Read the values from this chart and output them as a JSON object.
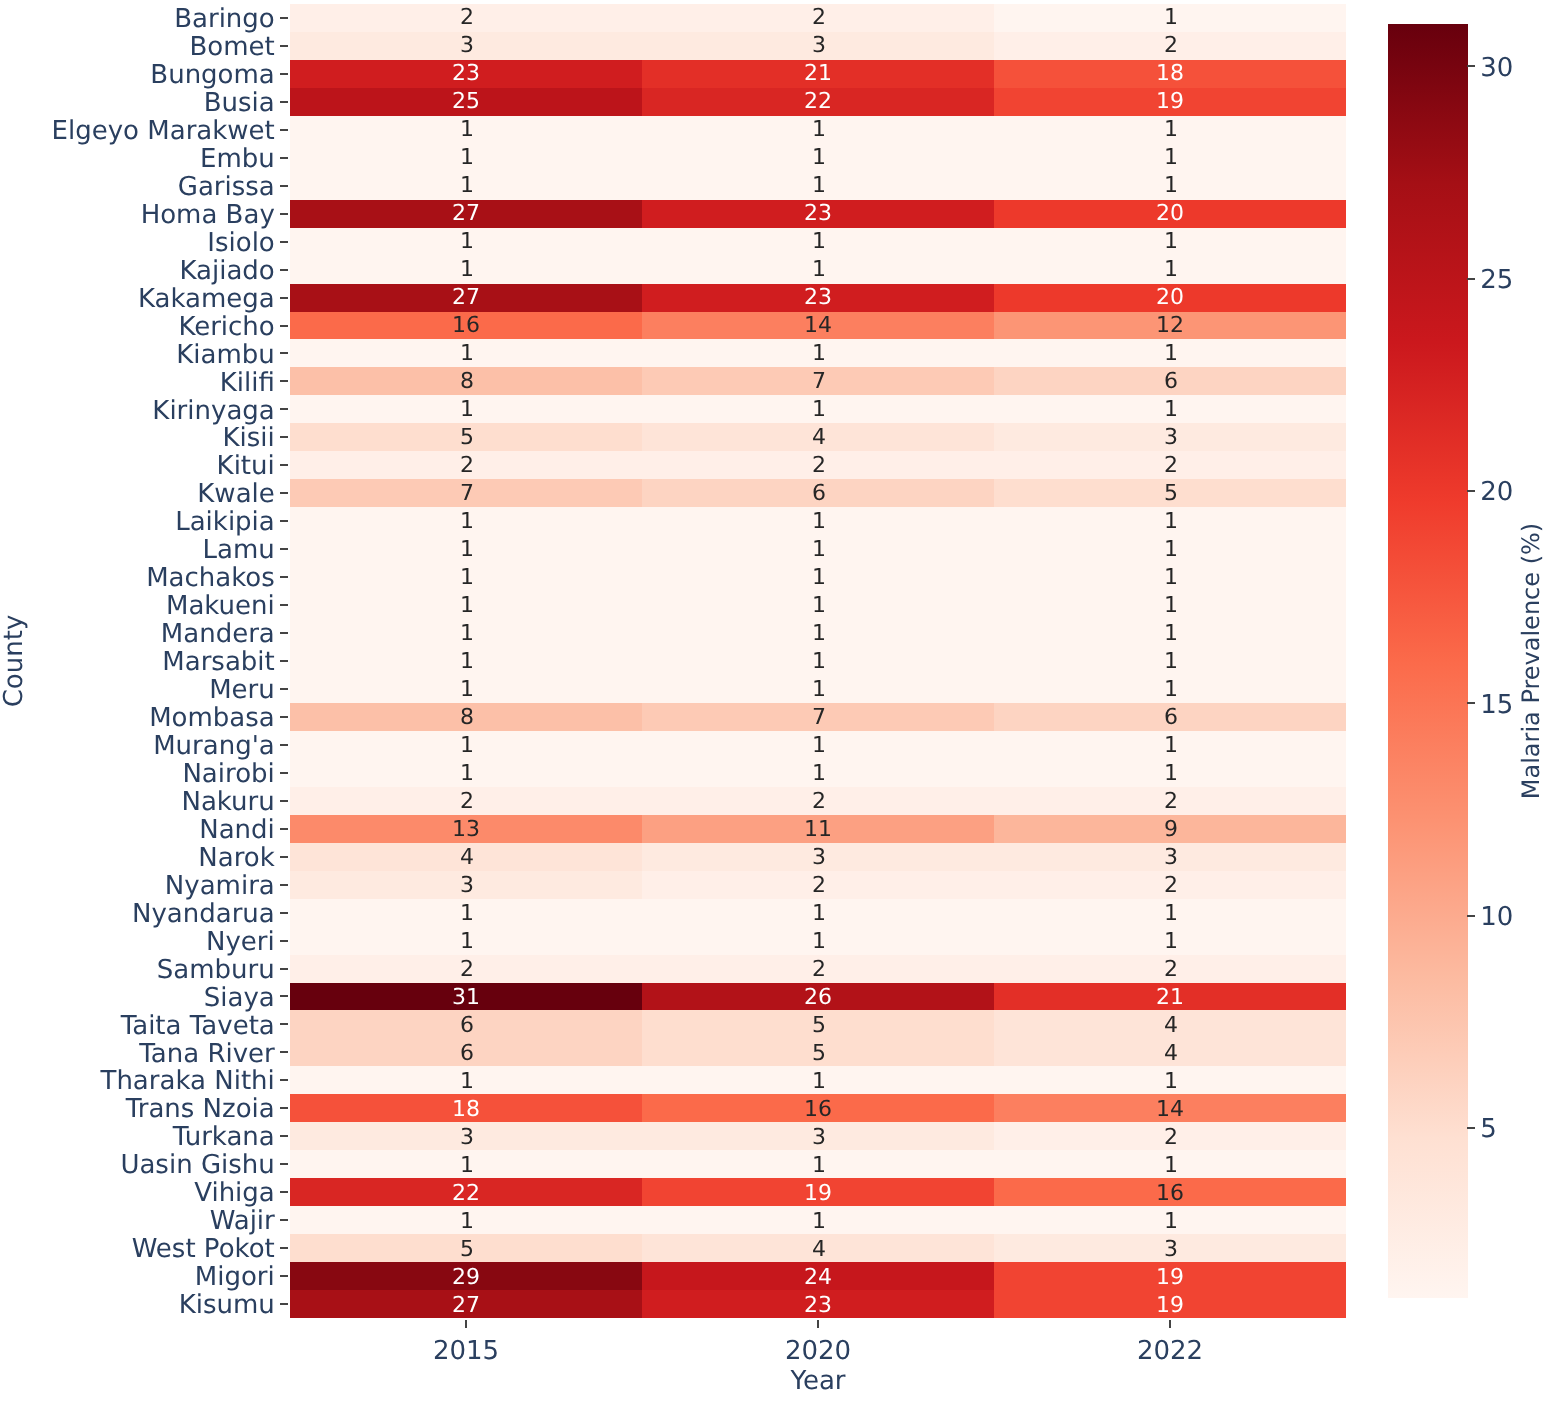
{
  "chart_data": {
    "type": "heatmap",
    "xlabel": "Year",
    "ylabel": "County",
    "clabel": "Malaria Prevalence (%)",
    "categories": [
      "2015",
      "2020",
      "2022"
    ],
    "y_categories": [
      "Baringo",
      "Bomet",
      "Bungoma",
      "Busia",
      "Elgeyo Marakwet",
      "Embu",
      "Garissa",
      "Homa Bay",
      "Isiolo",
      "Kajiado",
      "Kakamega",
      "Kericho",
      "Kiambu",
      "Kilifi",
      "Kirinyaga",
      "Kisii",
      "Kitui",
      "Kwale",
      "Laikipia",
      "Lamu",
      "Machakos",
      "Makueni",
      "Mandera",
      "Marsabit",
      "Meru",
      "Mombasa",
      "Murang'a",
      "Nairobi",
      "Nakuru",
      "Nandi",
      "Narok",
      "Nyamira",
      "Nyandarua",
      "Nyeri",
      "Samburu",
      "Siaya",
      "Taita Taveta",
      "Tana River",
      "Tharaka Nithi",
      "Trans Nzoia",
      "Turkana",
      "Uasin Gishu",
      "Vihiga",
      "Wajir",
      "West Pokot",
      "Migori",
      "Kisumu"
    ],
    "cells": [
      [
        2,
        2,
        1
      ],
      [
        3,
        3,
        2
      ],
      [
        23,
        21,
        18
      ],
      [
        25,
        22,
        19
      ],
      [
        1,
        1,
        1
      ],
      [
        1,
        1,
        1
      ],
      [
        1,
        1,
        1
      ],
      [
        27,
        23,
        20
      ],
      [
        1,
        1,
        1
      ],
      [
        1,
        1,
        1
      ],
      [
        27,
        23,
        20
      ],
      [
        16,
        14,
        12
      ],
      [
        1,
        1,
        1
      ],
      [
        8,
        7,
        6
      ],
      [
        1,
        1,
        1
      ],
      [
        5,
        4,
        3
      ],
      [
        2,
        2,
        2
      ],
      [
        7,
        6,
        5
      ],
      [
        1,
        1,
        1
      ],
      [
        1,
        1,
        1
      ],
      [
        1,
        1,
        1
      ],
      [
        1,
        1,
        1
      ],
      [
        1,
        1,
        1
      ],
      [
        1,
        1,
        1
      ],
      [
        1,
        1,
        1
      ],
      [
        8,
        7,
        6
      ],
      [
        1,
        1,
        1
      ],
      [
        1,
        1,
        1
      ],
      [
        2,
        2,
        2
      ],
      [
        13,
        11,
        9
      ],
      [
        4,
        3,
        3
      ],
      [
        3,
        2,
        2
      ],
      [
        1,
        1,
        1
      ],
      [
        1,
        1,
        1
      ],
      [
        2,
        2,
        2
      ],
      [
        31,
        26,
        21
      ],
      [
        6,
        5,
        4
      ],
      [
        6,
        5,
        4
      ],
      [
        1,
        1,
        1
      ],
      [
        18,
        16,
        14
      ],
      [
        3,
        3,
        2
      ],
      [
        1,
        1,
        1
      ],
      [
        22,
        19,
        16
      ],
      [
        1,
        1,
        1
      ],
      [
        5,
        4,
        3
      ],
      [
        29,
        24,
        19
      ],
      [
        27,
        23,
        19
      ]
    ],
    "clim": [
      1,
      31
    ],
    "cticks": [
      5,
      10,
      15,
      20,
      25,
      30
    ],
    "data_labels": true
  }
}
